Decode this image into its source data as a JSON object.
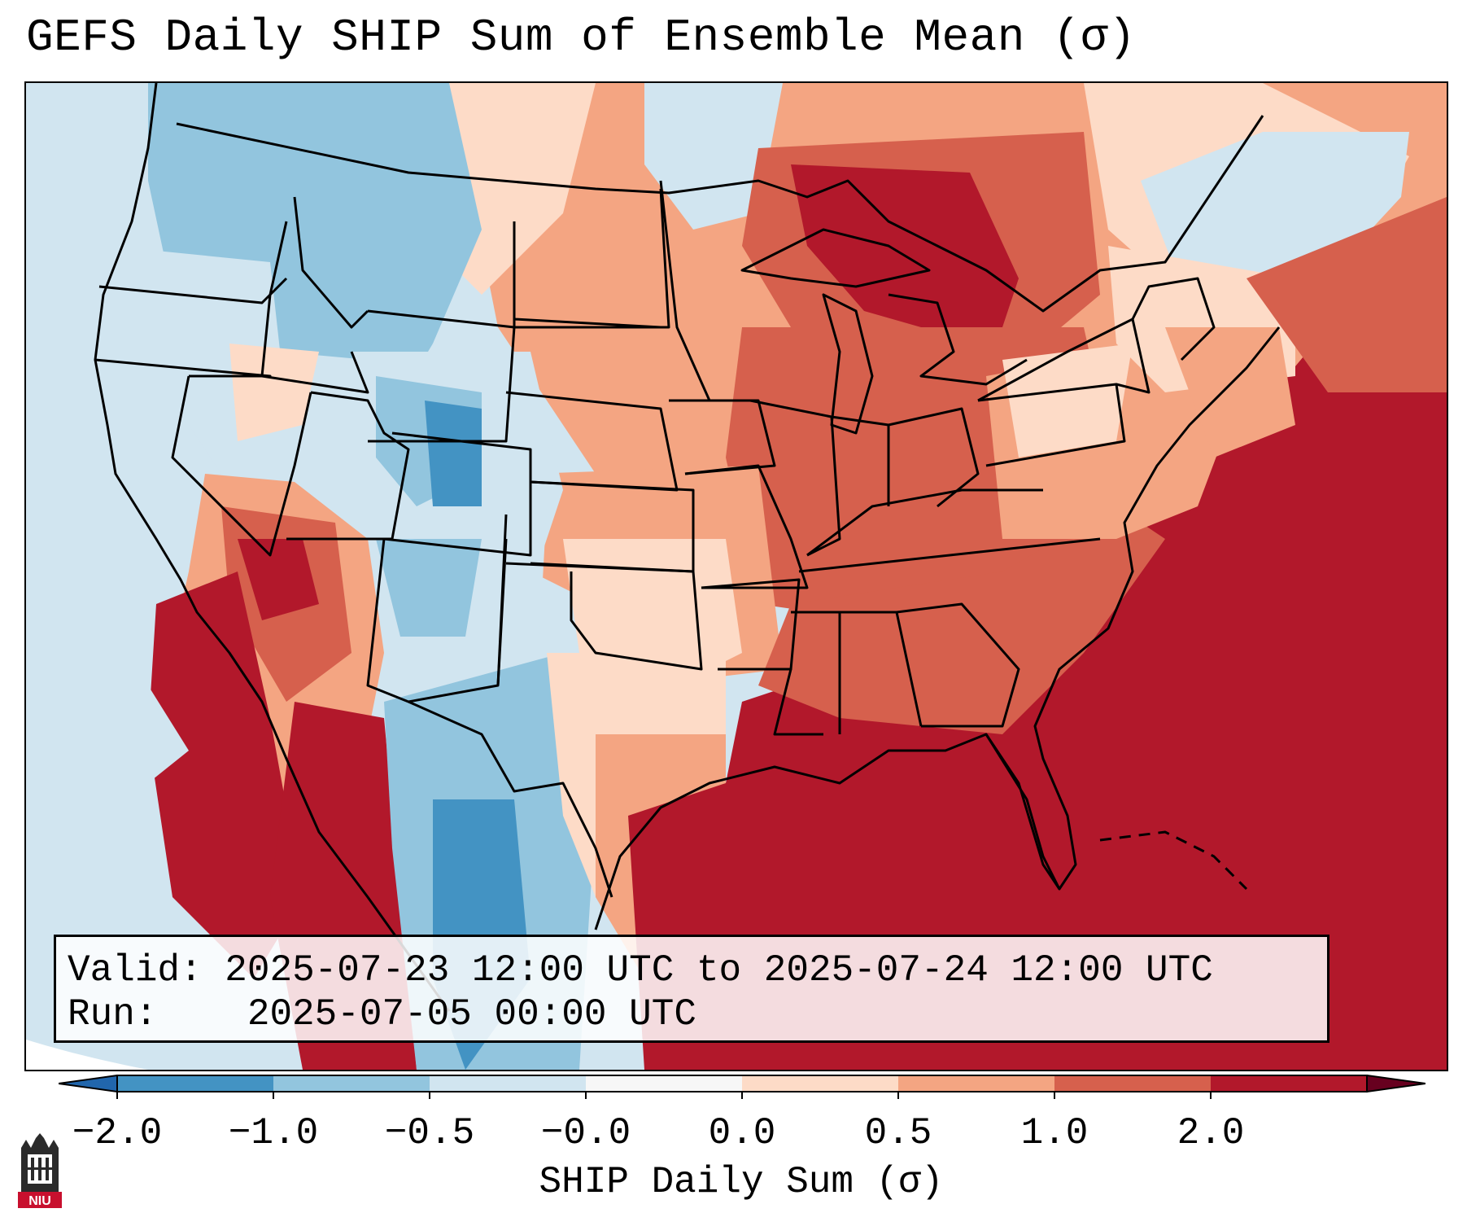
{
  "title": "GEFS Daily SHIP Sum of Ensemble Mean (σ)",
  "info": {
    "valid_label": "Valid:",
    "valid_value": "2025-07-23 12:00 UTC to 2025-07-24 12:00 UTC",
    "run_label": "Run:",
    "run_value": "2025-07-05 00:00 UTC"
  },
  "colorbar": {
    "label": "SHIP Daily Sum (σ)",
    "ticks": [
      "−2.0",
      "−1.0",
      "−0.5",
      "−0.0",
      "0.0",
      "0.5",
      "1.0",
      "2.0"
    ],
    "colors": [
      "#4393c3",
      "#92c5de",
      "#d1e5f0",
      "#f7f7f7",
      "#fddbc7",
      "#f4a582",
      "#d6604d",
      "#b2182b"
    ],
    "extend": "both"
  },
  "logo_text": "NIU",
  "map": {
    "region": "Contiguous United States",
    "regions": [
      {
        "name": "Pacific Northwest",
        "value": -0.3
      },
      {
        "name": "Northern Rockies",
        "value": -0.7
      },
      {
        "name": "Colorado / Utah",
        "value": -1.2
      },
      {
        "name": "Desert Southwest",
        "value": 1.2
      },
      {
        "name": "Northern Plains",
        "value": 0.6
      },
      {
        "name": "Upper Midwest / Great Lakes",
        "value": 1.6
      },
      {
        "name": "Ohio Valley",
        "value": 1.2
      },
      {
        "name": "Northeast",
        "value": 0.3
      },
      {
        "name": "Southeast / Gulf Coast",
        "value": 2.0
      },
      {
        "name": "West Texas",
        "value": -0.6
      },
      {
        "name": "Atlantic Ocean",
        "value": 2.0
      }
    ]
  }
}
